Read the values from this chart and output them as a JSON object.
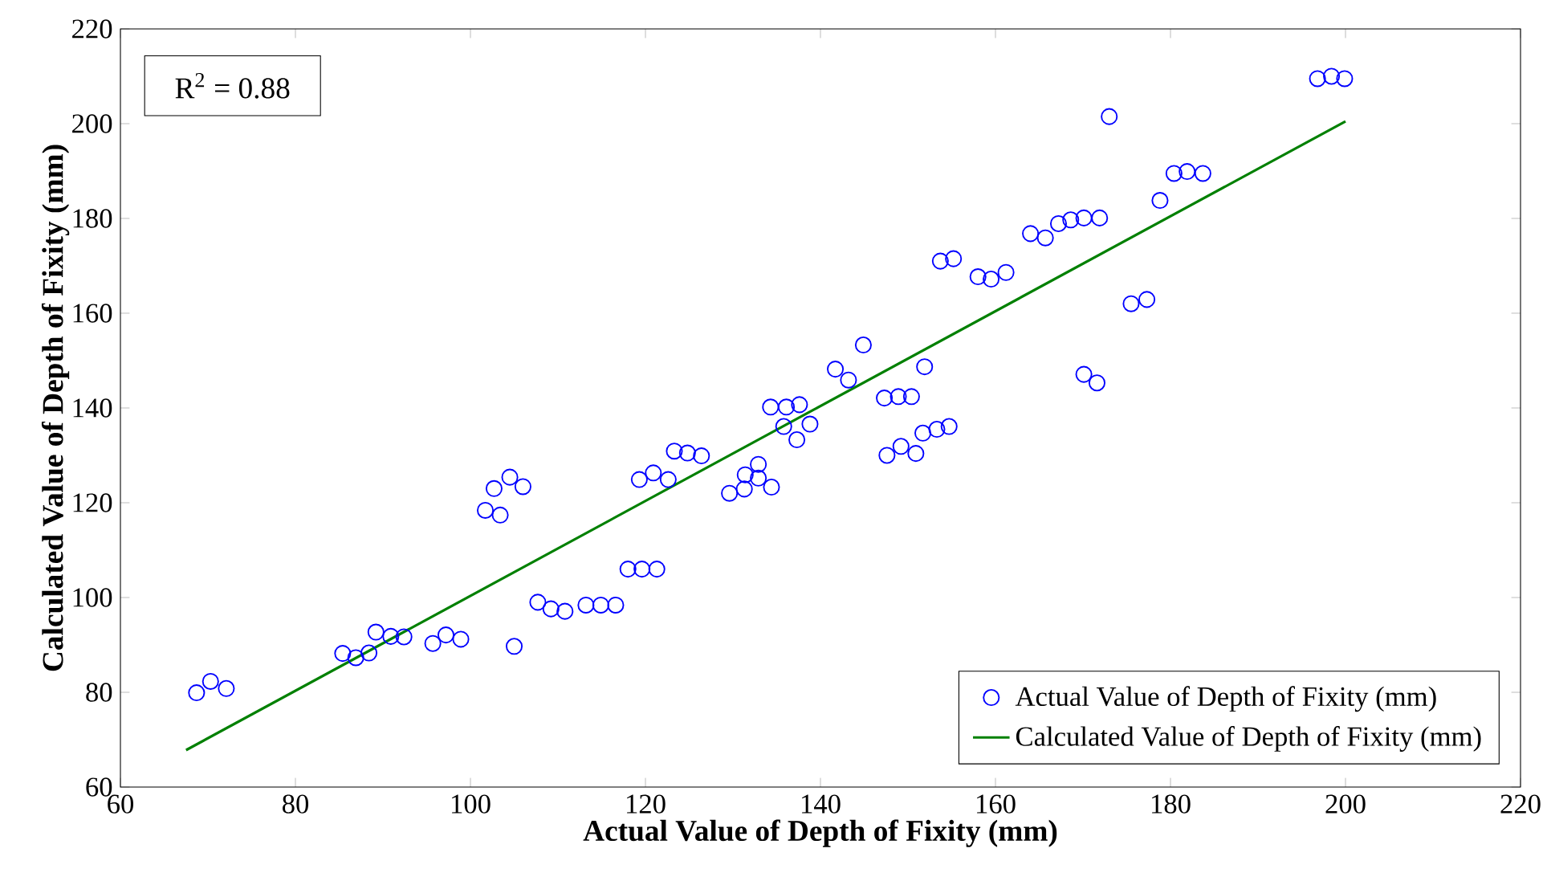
{
  "chart_data": {
    "type": "scatter",
    "xlabel": "Actual Value of Depth of Fixity (mm)",
    "ylabel": "Calculated Value of Depth of Fixity (mm)",
    "xlim": [
      60,
      220
    ],
    "ylim": [
      60,
      220
    ],
    "xticks": [
      60,
      80,
      100,
      120,
      140,
      160,
      180,
      200,
      220
    ],
    "yticks": [
      60,
      80,
      100,
      120,
      140,
      160,
      180,
      200,
      220
    ],
    "legend": "bottom right",
    "annotations": [
      "R$^{2}$ = 0.88"
    ],
    "series": [
      {
        "name": "Actual Value of Depth of Fixity (mm)",
        "marker": "circle",
        "color": "#0000ff",
        "x": [
          68.7,
          70.3,
          72.1,
          85.4,
          86.9,
          88.4,
          89.2,
          90.9,
          92.4,
          95.7,
          97.2,
          98.9,
          105,
          107.7,
          109.2,
          110.8,
          113.2,
          114.9,
          116.6,
          118,
          119.6,
          121.3,
          101.7,
          103.4,
          102.7,
          104.5,
          106,
          119.3,
          120.9,
          122.6,
          134.3,
          136.1,
          137.6,
          135.8,
          138.8,
          137.3,
          141.7,
          143.2,
          144.9,
          151.9,
          147.3,
          148.9,
          150.4,
          147.6,
          149.2,
          150.9,
          151.7,
          153.3,
          154.7,
          123.3,
          124.8,
          126.4,
          129.6,
          131.3,
          131.4,
          132.9,
          132.9,
          134.4,
          196.8,
          198.4,
          199.9,
          173,
          180.4,
          181.9,
          183.7,
          178.8,
          164,
          165.7,
          167.2,
          168.6,
          170.1,
          171.9,
          158,
          159.5,
          161.2,
          153.7,
          155.2,
          175.5,
          177.3,
          170.1,
          171.6
        ],
        "values": [
          79.9,
          82.3,
          80.8,
          88.2,
          87.3,
          88.3,
          92.7,
          91.8,
          91.7,
          90.3,
          92.1,
          91.2,
          89.7,
          99.0,
          97.6,
          97.1,
          98.4,
          98.4,
          98.4,
          106,
          106,
          106,
          118.4,
          117.4,
          123,
          125.4,
          123.4,
          124.9,
          126.3,
          124.9,
          140.2,
          140.2,
          140.7,
          136.1,
          136.6,
          133.3,
          148.2,
          145.9,
          153.3,
          148.7,
          142.1,
          142.4,
          142.4,
          130,
          131.9,
          130.4,
          134.7,
          135.5,
          136.1,
          130.9,
          130.5,
          129.9,
          122,
          122.9,
          125.9,
          128.1,
          125.2,
          123.3,
          209.5,
          210,
          209.5,
          201.5,
          189.5,
          189.9,
          189.5,
          183.8,
          176.8,
          175.9,
          178.9,
          179.7,
          180.1,
          180.1,
          167.7,
          167.2,
          168.6,
          171,
          171.5,
          162,
          162.9,
          147.1,
          145.3
        ]
      },
      {
        "name": "Calculated Value of Depth of Fixity (mm)",
        "type": "line",
        "color": "#008000",
        "x": [
          67.5,
          200
        ],
        "values": [
          67.8,
          200.5
        ]
      }
    ]
  }
}
